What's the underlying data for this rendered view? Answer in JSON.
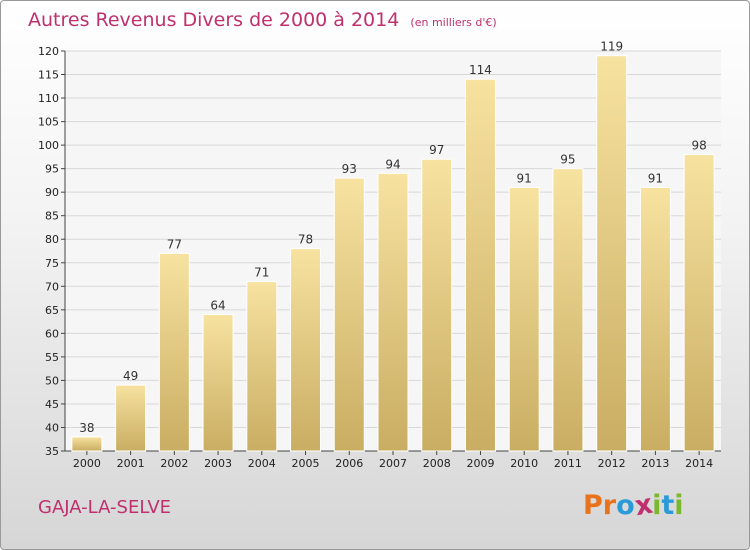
{
  "header": {
    "title": "Autres Revenus Divers de 2000 à 2014",
    "unit": "(en milliers d'€)"
  },
  "footer": {
    "city": "GAJA-LA-SELVE",
    "logo": "Proxiti",
    "logo_letters": [
      "P",
      "r",
      "o",
      "x",
      "i",
      "t",
      "i"
    ],
    "logo_colors": [
      "#e8731c",
      "#e8731c",
      "#2b9ad8",
      "#c0306e",
      "#7cb82f",
      "#2b9ad8",
      "#7cb82f"
    ]
  },
  "colors": {
    "title": "#c0306e",
    "bar_light": "#f7e2a0",
    "bar_dark": "#c9ad62",
    "grid": "#d8d8d8"
  },
  "chart_data": {
    "type": "bar",
    "title": "Autres Revenus Divers de 2000 à 2014",
    "subtitle": "(en milliers d'€)",
    "xlabel": "",
    "ylabel": "",
    "categories": [
      "2000",
      "2001",
      "2002",
      "2003",
      "2004",
      "2005",
      "2006",
      "2007",
      "2008",
      "2009",
      "2010",
      "2011",
      "2012",
      "2013",
      "2014"
    ],
    "values": [
      38,
      49,
      77,
      64,
      71,
      78,
      93,
      94,
      97,
      114,
      91,
      95,
      119,
      91,
      98
    ],
    "ylim": [
      35,
      120
    ],
    "yticks": [
      35,
      40,
      45,
      50,
      55,
      60,
      65,
      70,
      75,
      80,
      85,
      90,
      95,
      100,
      105,
      110,
      115,
      120
    ],
    "grid": true,
    "legend": "none"
  }
}
